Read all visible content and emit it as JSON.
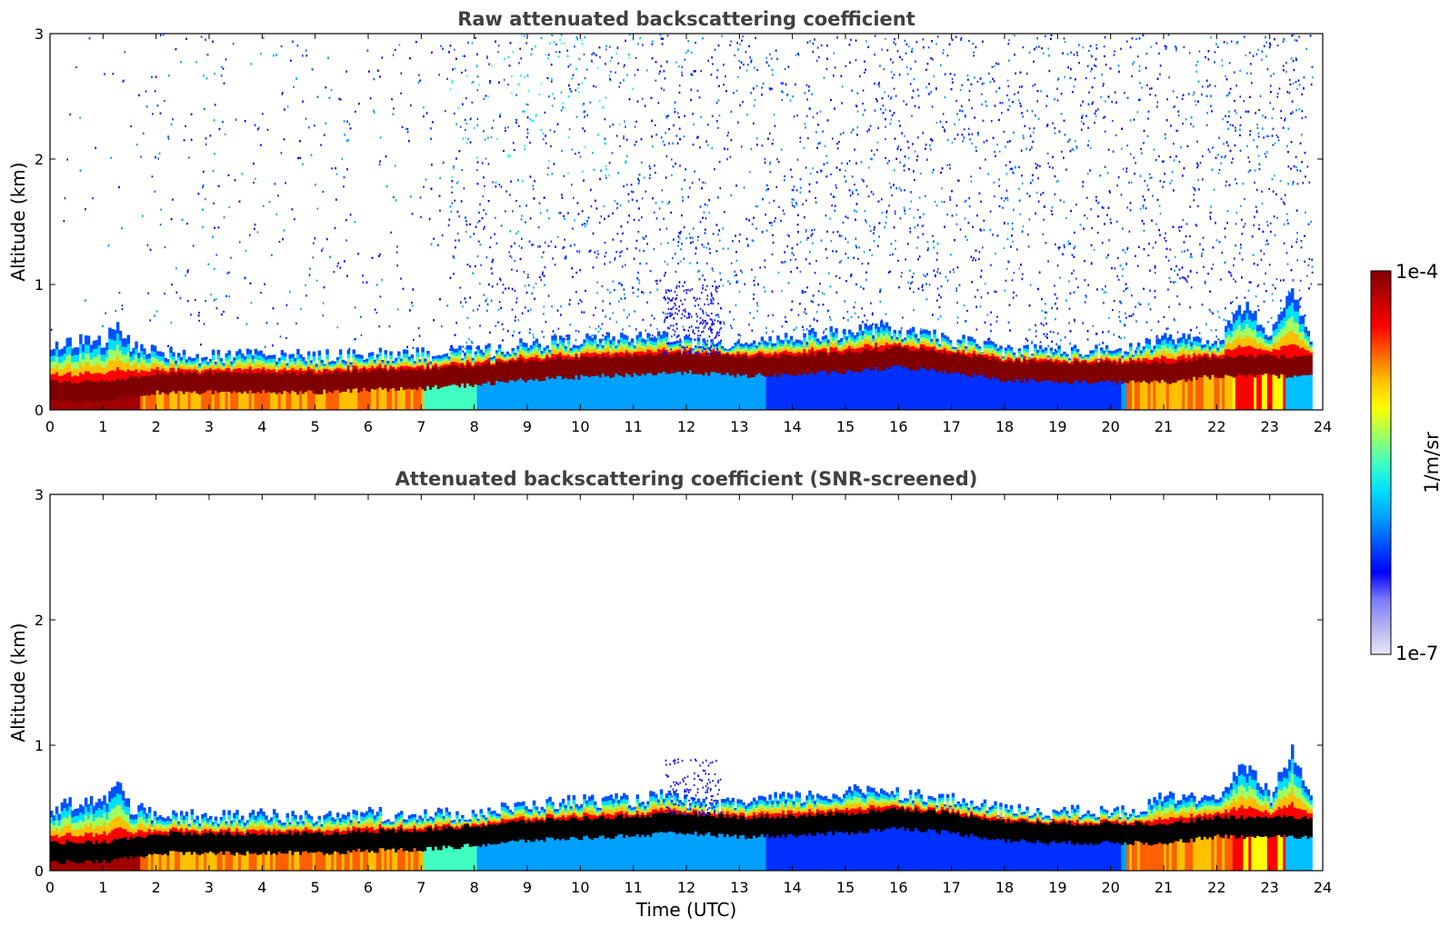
{
  "chart_data": [
    {
      "type": "heatmap",
      "title": "Raw attenuated backscattering coefficient",
      "xlabel": "",
      "ylabel": "Altitude (km)",
      "xlim": [
        0,
        24
      ],
      "ylim": [
        0,
        3
      ],
      "xticks": [
        "0",
        "1",
        "2",
        "3",
        "4",
        "5",
        "6",
        "7",
        "8",
        "9",
        "10",
        "11",
        "12",
        "13",
        "14",
        "15",
        "16",
        "17",
        "18",
        "19",
        "20",
        "21",
        "22",
        "23",
        "24"
      ],
      "yticks": [
        "0",
        "1",
        "2",
        "3"
      ],
      "noise_above_boundary_layer": true,
      "boundary_layer_top_km": [
        [
          0,
          0.48
        ],
        [
          0.5,
          0.55
        ],
        [
          1,
          0.55
        ],
        [
          1.25,
          0.7
        ],
        [
          1.5,
          0.5
        ],
        [
          2,
          0.45
        ],
        [
          3,
          0.42
        ],
        [
          4,
          0.44
        ],
        [
          5,
          0.42
        ],
        [
          6,
          0.45
        ],
        [
          7,
          0.44
        ],
        [
          8,
          0.46
        ],
        [
          9,
          0.52
        ],
        [
          10,
          0.56
        ],
        [
          11,
          0.56
        ],
        [
          11.6,
          0.6
        ],
        [
          12,
          0.55
        ],
        [
          12.5,
          0.5
        ],
        [
          13,
          0.55
        ],
        [
          14,
          0.58
        ],
        [
          15,
          0.62
        ],
        [
          15.6,
          0.66
        ],
        [
          16,
          0.62
        ],
        [
          17,
          0.56
        ],
        [
          18,
          0.48
        ],
        [
          19,
          0.47
        ],
        [
          20,
          0.46
        ],
        [
          20.4,
          0.48
        ],
        [
          21,
          0.58
        ],
        [
          22,
          0.55
        ],
        [
          22.5,
          0.85
        ],
        [
          23,
          0.6
        ],
        [
          23.4,
          0.95
        ],
        [
          23.8,
          0.5
        ]
      ],
      "max_signal_height_km": [
        [
          0,
          0.15
        ],
        [
          1,
          0.15
        ],
        [
          2,
          0.22
        ],
        [
          3,
          0.22
        ],
        [
          4,
          0.22
        ],
        [
          5,
          0.22
        ],
        [
          6,
          0.24
        ],
        [
          7,
          0.25
        ],
        [
          8,
          0.28
        ],
        [
          9,
          0.32
        ],
        [
          10,
          0.34
        ],
        [
          11,
          0.36
        ],
        [
          12,
          0.38
        ],
        [
          13,
          0.35
        ],
        [
          14,
          0.36
        ],
        [
          15,
          0.38
        ],
        [
          16,
          0.42
        ],
        [
          17,
          0.38
        ],
        [
          18,
          0.32
        ],
        [
          19,
          0.3
        ],
        [
          20,
          0.3
        ],
        [
          21,
          0.3
        ],
        [
          22,
          0.35
        ],
        [
          23,
          0.35
        ],
        [
          23.8,
          0.35
        ]
      ]
    },
    {
      "type": "heatmap",
      "title": "Attenuated backscattering coefficient (SNR-screened)",
      "xlabel": "Time (UTC)",
      "ylabel": "Altitude (km)",
      "xlim": [
        0,
        24
      ],
      "ylim": [
        0,
        3
      ],
      "xticks": [
        "0",
        "1",
        "2",
        "3",
        "4",
        "5",
        "6",
        "7",
        "8",
        "9",
        "10",
        "11",
        "12",
        "13",
        "14",
        "15",
        "16",
        "17",
        "18",
        "19",
        "20",
        "21",
        "22",
        "23",
        "24"
      ],
      "yticks": [
        "0",
        "1",
        "2",
        "3"
      ],
      "noise_above_boundary_layer": false
    }
  ],
  "colorbar": {
    "label": "1/m/sr",
    "max_label": "1e-4",
    "min_label": "1e-7",
    "colors": [
      "#e6e6f8",
      "#b4b4f0",
      "#7a7aff",
      "#0000ff",
      "#0050ff",
      "#00a0ff",
      "#00e0ff",
      "#40ffc0",
      "#a0ff60",
      "#ffff00",
      "#ffc000",
      "#ff6000",
      "#ff0000",
      "#c00000",
      "#800000"
    ]
  },
  "colors": {
    "title": "#404040",
    "bl_dark": "#800000",
    "screened_core": "#000000"
  }
}
